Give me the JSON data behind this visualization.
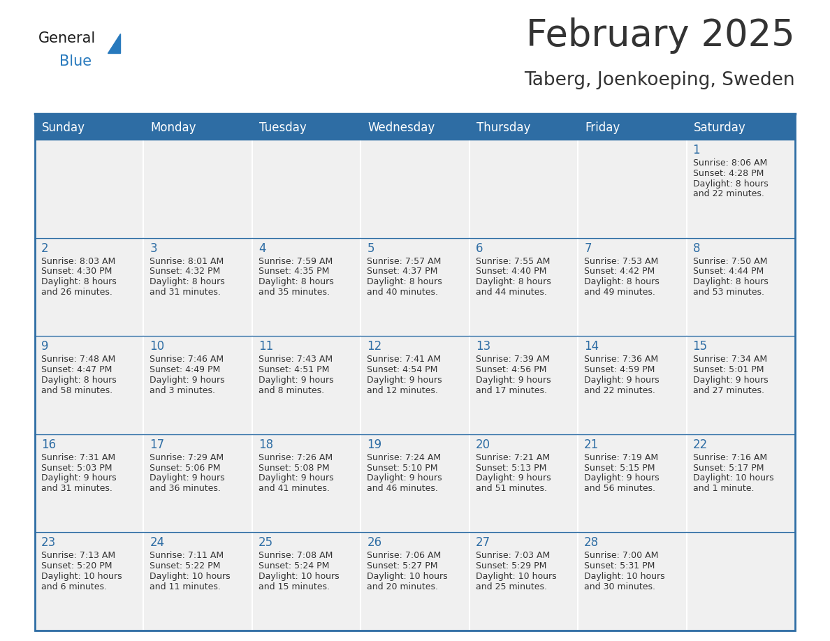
{
  "title": "February 2025",
  "subtitle": "Taberg, Joenkoeping, Sweden",
  "header_bg": "#2E6DA4",
  "header_text": "#FFFFFF",
  "cell_bg_light": "#F0F0F0",
  "cell_bg_white": "#FFFFFF",
  "text_color": "#333333",
  "day_number_color": "#2E6DA4",
  "separator_color": "#2E6DA4",
  "days_of_week": [
    "Sunday",
    "Monday",
    "Tuesday",
    "Wednesday",
    "Thursday",
    "Friday",
    "Saturday"
  ],
  "weeks": [
    [
      {
        "day": null,
        "sunrise": null,
        "sunset": null,
        "daylight": null
      },
      {
        "day": null,
        "sunrise": null,
        "sunset": null,
        "daylight": null
      },
      {
        "day": null,
        "sunrise": null,
        "sunset": null,
        "daylight": null
      },
      {
        "day": null,
        "sunrise": null,
        "sunset": null,
        "daylight": null
      },
      {
        "day": null,
        "sunrise": null,
        "sunset": null,
        "daylight": null
      },
      {
        "day": null,
        "sunrise": null,
        "sunset": null,
        "daylight": null
      },
      {
        "day": 1,
        "sunrise": "8:06 AM",
        "sunset": "4:28 PM",
        "daylight": "8 hours\nand 22 minutes."
      }
    ],
    [
      {
        "day": 2,
        "sunrise": "8:03 AM",
        "sunset": "4:30 PM",
        "daylight": "8 hours\nand 26 minutes."
      },
      {
        "day": 3,
        "sunrise": "8:01 AM",
        "sunset": "4:32 PM",
        "daylight": "8 hours\nand 31 minutes."
      },
      {
        "day": 4,
        "sunrise": "7:59 AM",
        "sunset": "4:35 PM",
        "daylight": "8 hours\nand 35 minutes."
      },
      {
        "day": 5,
        "sunrise": "7:57 AM",
        "sunset": "4:37 PM",
        "daylight": "8 hours\nand 40 minutes."
      },
      {
        "day": 6,
        "sunrise": "7:55 AM",
        "sunset": "4:40 PM",
        "daylight": "8 hours\nand 44 minutes."
      },
      {
        "day": 7,
        "sunrise": "7:53 AM",
        "sunset": "4:42 PM",
        "daylight": "8 hours\nand 49 minutes."
      },
      {
        "day": 8,
        "sunrise": "7:50 AM",
        "sunset": "4:44 PM",
        "daylight": "8 hours\nand 53 minutes."
      }
    ],
    [
      {
        "day": 9,
        "sunrise": "7:48 AM",
        "sunset": "4:47 PM",
        "daylight": "8 hours\nand 58 minutes."
      },
      {
        "day": 10,
        "sunrise": "7:46 AM",
        "sunset": "4:49 PM",
        "daylight": "9 hours\nand 3 minutes."
      },
      {
        "day": 11,
        "sunrise": "7:43 AM",
        "sunset": "4:51 PM",
        "daylight": "9 hours\nand 8 minutes."
      },
      {
        "day": 12,
        "sunrise": "7:41 AM",
        "sunset": "4:54 PM",
        "daylight": "9 hours\nand 12 minutes."
      },
      {
        "day": 13,
        "sunrise": "7:39 AM",
        "sunset": "4:56 PM",
        "daylight": "9 hours\nand 17 minutes."
      },
      {
        "day": 14,
        "sunrise": "7:36 AM",
        "sunset": "4:59 PM",
        "daylight": "9 hours\nand 22 minutes."
      },
      {
        "day": 15,
        "sunrise": "7:34 AM",
        "sunset": "5:01 PM",
        "daylight": "9 hours\nand 27 minutes."
      }
    ],
    [
      {
        "day": 16,
        "sunrise": "7:31 AM",
        "sunset": "5:03 PM",
        "daylight": "9 hours\nand 31 minutes."
      },
      {
        "day": 17,
        "sunrise": "7:29 AM",
        "sunset": "5:06 PM",
        "daylight": "9 hours\nand 36 minutes."
      },
      {
        "day": 18,
        "sunrise": "7:26 AM",
        "sunset": "5:08 PM",
        "daylight": "9 hours\nand 41 minutes."
      },
      {
        "day": 19,
        "sunrise": "7:24 AM",
        "sunset": "5:10 PM",
        "daylight": "9 hours\nand 46 minutes."
      },
      {
        "day": 20,
        "sunrise": "7:21 AM",
        "sunset": "5:13 PM",
        "daylight": "9 hours\nand 51 minutes."
      },
      {
        "day": 21,
        "sunrise": "7:19 AM",
        "sunset": "5:15 PM",
        "daylight": "9 hours\nand 56 minutes."
      },
      {
        "day": 22,
        "sunrise": "7:16 AM",
        "sunset": "5:17 PM",
        "daylight": "10 hours\nand 1 minute."
      }
    ],
    [
      {
        "day": 23,
        "sunrise": "7:13 AM",
        "sunset": "5:20 PM",
        "daylight": "10 hours\nand 6 minutes."
      },
      {
        "day": 24,
        "sunrise": "7:11 AM",
        "sunset": "5:22 PM",
        "daylight": "10 hours\nand 11 minutes."
      },
      {
        "day": 25,
        "sunrise": "7:08 AM",
        "sunset": "5:24 PM",
        "daylight": "10 hours\nand 15 minutes."
      },
      {
        "day": 26,
        "sunrise": "7:06 AM",
        "sunset": "5:27 PM",
        "daylight": "10 hours\nand 20 minutes."
      },
      {
        "day": 27,
        "sunrise": "7:03 AM",
        "sunset": "5:29 PM",
        "daylight": "10 hours\nand 25 minutes."
      },
      {
        "day": 28,
        "sunrise": "7:00 AM",
        "sunset": "5:31 PM",
        "daylight": "10 hours\nand 30 minutes."
      },
      {
        "day": null,
        "sunrise": null,
        "sunset": null,
        "daylight": null
      }
    ]
  ],
  "logo_general_color": "#1a1a1a",
  "logo_blue_color": "#2779BD",
  "title_fontsize": 38,
  "subtitle_fontsize": 19,
  "header_fontsize": 12,
  "day_num_fontsize": 12,
  "cell_text_fontsize": 9
}
